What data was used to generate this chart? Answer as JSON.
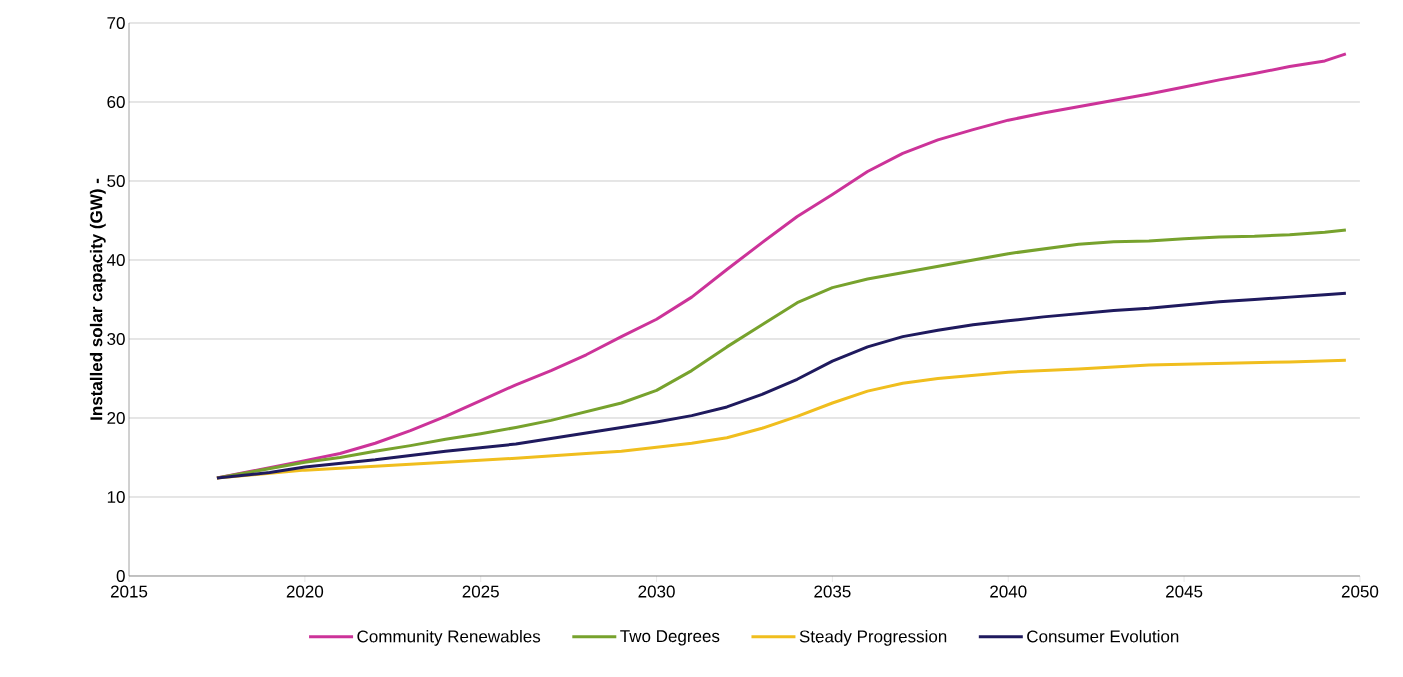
{
  "chart_data": {
    "type": "line",
    "ylabel": "Installed  solar capacity (GW) -",
    "xlim": [
      2015,
      2050
    ],
    "ylim": [
      0,
      70
    ],
    "xticks": [
      2015,
      2020,
      2025,
      2030,
      2035,
      2040,
      2045,
      2050
    ],
    "yticks": [
      0,
      10,
      20,
      30,
      40,
      50,
      60,
      70
    ],
    "grid": "y",
    "legend": "bottom",
    "line_style": "solid",
    "series": [
      {
        "name": "Community Renewables",
        "color": "#cc3399",
        "x": [
          2017.5,
          2020,
          2021,
          2022,
          2023,
          2024,
          2025,
          2026,
          2027,
          2028,
          2029,
          2030,
          2031,
          2032,
          2033,
          2034,
          2035,
          2036,
          2037,
          2038,
          2039,
          2040,
          2041,
          2042,
          2043,
          2044,
          2045,
          2046,
          2047,
          2048,
          2049,
          2049.6
        ],
        "values": [
          12.4,
          14.6,
          15.5,
          16.8,
          18.4,
          20.2,
          22.2,
          24.2,
          26.0,
          28.0,
          30.3,
          32.5,
          35.3,
          38.8,
          42.2,
          45.5,
          48.3,
          51.2,
          53.5,
          55.2,
          56.5,
          57.7,
          58.6,
          59.4,
          60.2,
          61.0,
          61.9,
          62.8,
          63.6,
          64.5,
          65.2,
          66.1
        ]
      },
      {
        "name": "Two Degrees",
        "color": "#77a22d",
        "x": [
          2017.5,
          2019,
          2020,
          2021,
          2022,
          2023,
          2024,
          2025,
          2026,
          2027,
          2028,
          2029,
          2030,
          2031,
          2032,
          2033,
          2034,
          2035,
          2036,
          2037,
          2038,
          2039,
          2040,
          2041,
          2042,
          2043,
          2044,
          2045,
          2046,
          2047,
          2048,
          2049,
          2049.6
        ],
        "values": [
          12.4,
          13.6,
          14.4,
          15.0,
          15.8,
          16.5,
          17.3,
          18.0,
          18.8,
          19.7,
          20.8,
          21.9,
          23.5,
          26.0,
          29.0,
          31.8,
          34.6,
          36.5,
          37.6,
          38.4,
          39.2,
          40.0,
          40.8,
          41.4,
          42.0,
          42.3,
          42.4,
          42.7,
          42.9,
          43.0,
          43.2,
          43.5,
          43.8
        ]
      },
      {
        "name": "Steady Progression",
        "color": "#f0be1e",
        "x": [
          2017.5,
          2020,
          2022,
          2024,
          2026,
          2028,
          2029,
          2030,
          2031,
          2032,
          2033,
          2034,
          2035,
          2036,
          2037,
          2038,
          2039,
          2040,
          2042,
          2044,
          2046,
          2048,
          2049.6
        ],
        "values": [
          12.4,
          13.4,
          13.9,
          14.4,
          14.9,
          15.5,
          15.8,
          16.3,
          16.8,
          17.5,
          18.7,
          20.2,
          21.9,
          23.4,
          24.4,
          25.0,
          25.4,
          25.8,
          26.2,
          26.7,
          26.9,
          27.1,
          27.3
        ]
      },
      {
        "name": "Consumer Evolution",
        "color": "#1f1a5e",
        "x": [
          2017.5,
          2019,
          2020,
          2022,
          2024,
          2026,
          2027,
          2028,
          2029,
          2030,
          2031,
          2032,
          2033,
          2034,
          2035,
          2036,
          2037,
          2038,
          2039,
          2040,
          2041,
          2042,
          2043,
          2044,
          2045,
          2046,
          2047,
          2048,
          2049,
          2049.6
        ],
        "values": [
          12.4,
          13.1,
          13.8,
          14.7,
          15.8,
          16.7,
          17.4,
          18.1,
          18.8,
          19.5,
          20.3,
          21.4,
          23.0,
          24.9,
          27.2,
          29.0,
          30.3,
          31.1,
          31.8,
          32.3,
          32.8,
          33.2,
          33.6,
          33.9,
          34.3,
          34.7,
          35.0,
          35.3,
          35.6,
          35.8
        ]
      }
    ]
  }
}
